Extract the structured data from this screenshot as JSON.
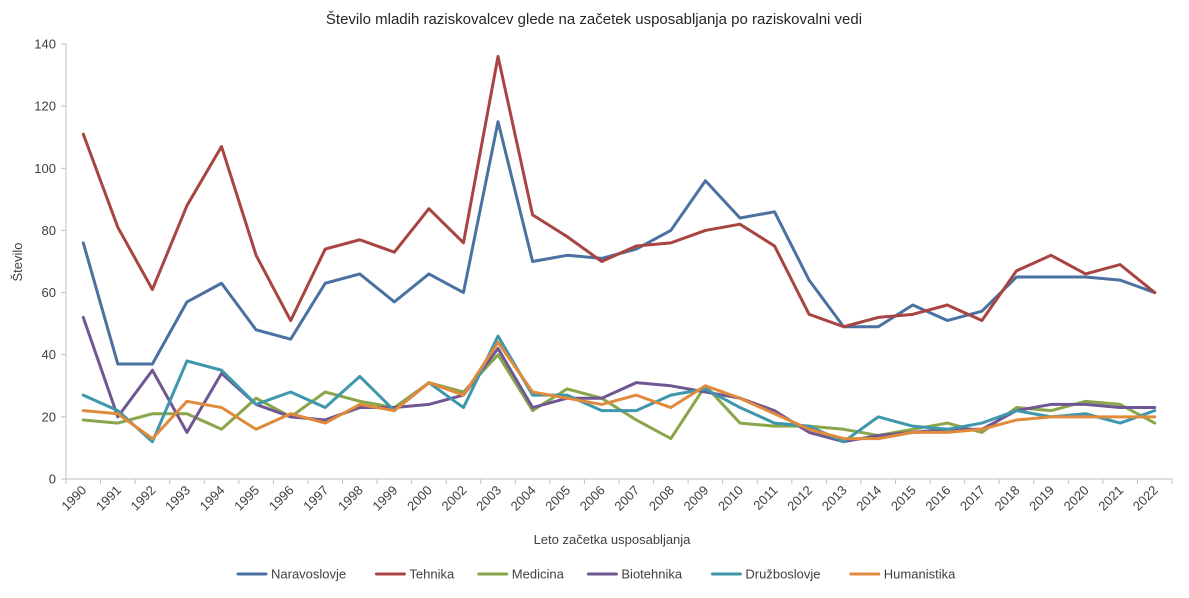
{
  "chart_data": {
    "type": "line",
    "title": "Število mladih raziskovalcev glede na začetek usposabljanja po raziskovalni vedi",
    "xlabel": "Leto začetka usposabljanja",
    "ylabel": "Število",
    "ylim": [
      0,
      140
    ],
    "yticks": [
      "0",
      "20",
      "40",
      "60",
      "80",
      "100",
      "120",
      "140"
    ],
    "grid": false,
    "legend_position": "bottom",
    "categories": [
      "1990",
      "1991",
      "1992",
      "1993",
      "1994",
      "1995",
      "1996",
      "1997",
      "1998",
      "1999",
      "2000",
      "2002",
      "2003",
      "2004",
      "2005",
      "2006",
      "2007",
      "2008",
      "2009",
      "2010",
      "2011",
      "2012",
      "2013",
      "2014",
      "2015",
      "2016",
      "2017",
      "2018",
      "2019",
      "2020",
      "2021",
      "2022"
    ],
    "series": [
      {
        "name": "Naravoslovje",
        "color": "#4a71a0",
        "values": [
          76,
          37,
          37,
          57,
          63,
          48,
          45,
          63,
          66,
          57,
          66,
          60,
          115,
          70,
          72,
          71,
          74,
          80,
          96,
          84,
          86,
          64,
          49,
          49,
          56,
          51,
          54,
          65,
          65,
          65,
          64,
          60
        ]
      },
      {
        "name": "Tehnika",
        "color": "#a84441",
        "values": [
          111,
          81,
          61,
          88,
          107,
          72,
          51,
          74,
          77,
          73,
          87,
          76,
          136,
          85,
          78,
          70,
          75,
          76,
          80,
          82,
          75,
          53,
          49,
          52,
          53,
          56,
          51,
          67,
          72,
          66,
          69,
          60
        ]
      },
      {
        "name": "Medicina",
        "color": "#89a64a",
        "values": [
          19,
          18,
          21,
          21,
          16,
          26,
          20,
          28,
          25,
          23,
          31,
          28,
          40,
          22,
          29,
          26,
          19,
          13,
          30,
          18,
          17,
          17,
          16,
          14,
          16,
          18,
          15,
          23,
          22,
          25,
          24,
          18
        ]
      },
      {
        "name": "Biotehnika",
        "color": "#6f5793",
        "values": [
          52,
          20,
          35,
          15,
          34,
          24,
          20,
          19,
          23,
          23,
          24,
          27,
          42,
          23,
          26,
          26,
          31,
          30,
          28,
          26,
          22,
          15,
          12,
          14,
          15,
          16,
          16,
          22,
          24,
          24,
          23,
          23
        ]
      },
      {
        "name": "Družboslovje",
        "color": "#3e97ad",
        "values": [
          27,
          22,
          12,
          38,
          35,
          24,
          28,
          23,
          33,
          22,
          31,
          23,
          46,
          27,
          27,
          22,
          22,
          27,
          29,
          23,
          18,
          17,
          12,
          20,
          17,
          16,
          18,
          22,
          20,
          21,
          18,
          22
        ]
      },
      {
        "name": "Humanistika",
        "color": "#e08a3c",
        "values": [
          22,
          21,
          13,
          25,
          23,
          16,
          21,
          18,
          24,
          22,
          31,
          27,
          44,
          28,
          26,
          24,
          27,
          23,
          30,
          26,
          21,
          16,
          13,
          13,
          15,
          15,
          16,
          19,
          20,
          20,
          20,
          20
        ]
      }
    ]
  }
}
